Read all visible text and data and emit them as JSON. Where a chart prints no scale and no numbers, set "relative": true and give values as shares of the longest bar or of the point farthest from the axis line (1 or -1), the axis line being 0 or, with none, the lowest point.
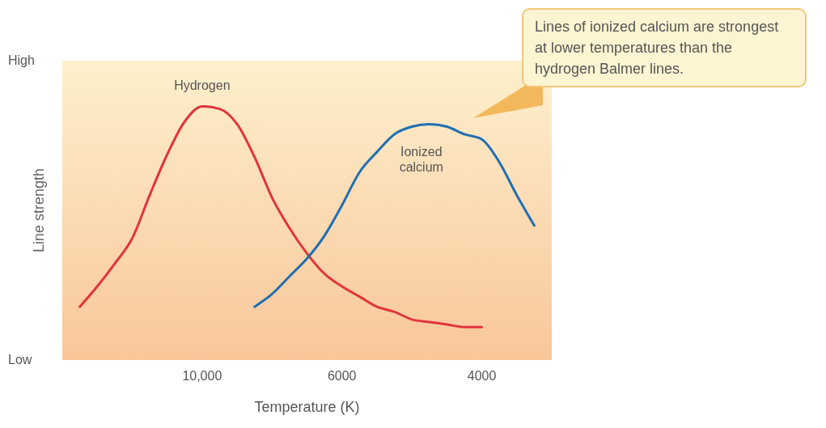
{
  "chart_data": {
    "type": "line",
    "relative": true,
    "xlabel": "Temperature (K)",
    "ylabel": "Line strength",
    "categories": [
      null,
      null,
      null,
      null,
      null,
      null,
      null,
      null,
      "10,000",
      null,
      null,
      null,
      null,
      null,
      null,
      null,
      "6000",
      null,
      null,
      null,
      null,
      null,
      null,
      null,
      "4000",
      null,
      null,
      null,
      null
    ],
    "series": [
      {
        "name": "Hydrogen",
        "color": "#e0353b",
        "values": [
          null,
          0.21,
          0.29,
          0.38,
          0.48,
          0.65,
          0.81,
          0.94,
          1,
          0.99,
          0.93,
          0.8,
          0.64,
          0.52,
          0.42,
          0.34,
          0.29,
          0.25,
          0.21,
          0.19,
          0.16,
          0.15,
          0.14,
          0.13,
          0.13,
          null,
          null,
          null,
          null
        ]
      },
      {
        "name": "Ionized calcium",
        "color": "#1f6fb2",
        "values": [
          null,
          null,
          null,
          null,
          null,
          null,
          null,
          null,
          null,
          null,
          null,
          0.21,
          0.26,
          0.33,
          0.4,
          0.49,
          0.61,
          0.74,
          0.82,
          0.89,
          0.92,
          0.93,
          0.92,
          0.89,
          0.87,
          0.78,
          0.65,
          0.53,
          null
        ]
      }
    ],
    "grid": false,
    "legend": false,
    "marker": "none",
    "line_style": "solid",
    "annotations": [
      "High",
      "Low",
      "Lines of ionized calcium are strongest at lower temperatures than the hydrogen Balmer lines."
    ]
  }
}
